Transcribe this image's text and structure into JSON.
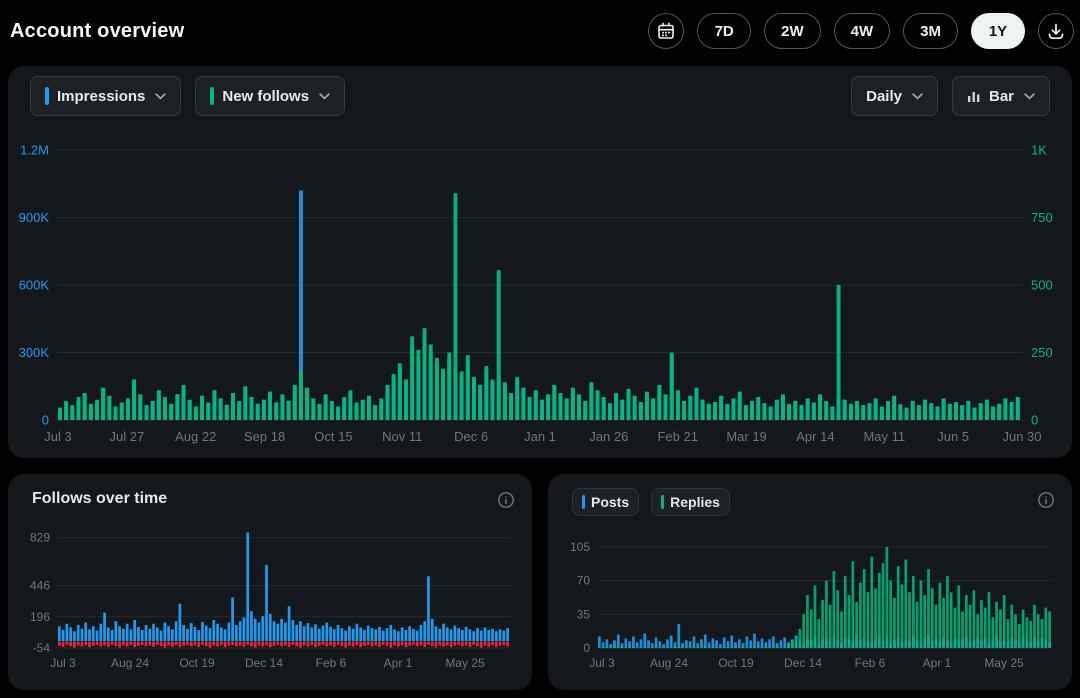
{
  "header": {
    "title": "Account overview",
    "calendar_button": "calendar",
    "download_button": "download",
    "time_ranges": [
      {
        "label": "7D",
        "selected": false
      },
      {
        "label": "2W",
        "selected": false
      },
      {
        "label": "4W",
        "selected": false
      },
      {
        "label": "3M",
        "selected": false
      },
      {
        "label": "1Y",
        "selected": true
      }
    ]
  },
  "main_panel": {
    "metrics": [
      {
        "label": "Impressions",
        "accent": "#1d9bf0"
      },
      {
        "label": "New follows",
        "accent": "#00ba7c"
      }
    ],
    "granularity_label": "Daily",
    "chart_type_label": "Bar"
  },
  "follows_panel": {
    "title": "Follows over time"
  },
  "engagement_panel": {
    "legend": [
      {
        "label": "Posts",
        "accent": "#1d9bf0"
      },
      {
        "label": "Replies",
        "accent": "#00ba7c"
      }
    ]
  },
  "colors": {
    "blue": "#1d9bf0",
    "green": "#00ba7c",
    "red": "#f4212e",
    "axis_text": "#71767b",
    "grid": "#23282c",
    "selected_pill_bg": "#eff3f4"
  },
  "chart_data": [
    {
      "id": "impressions-vs-new-follows",
      "type": "bar",
      "granularity": "Daily",
      "x_tick_labels": [
        "Jul 3",
        "Jul 27",
        "Aug 22",
        "Sep 18",
        "Oct 15",
        "Nov 11",
        "Dec 6",
        "Jan 1",
        "Jan 26",
        "Feb 21",
        "Mar 19",
        "Apr 14",
        "May 11",
        "Jun 5",
        "Jun 30"
      ],
      "left_axis": {
        "metric": "Impressions",
        "color": "#1d9bf0",
        "ticks": [
          "0",
          "300K",
          "600K",
          "900K",
          "1.2M"
        ],
        "range": [
          0,
          1200000
        ]
      },
      "right_axis": {
        "metric": "New follows",
        "color": "#00ba7c",
        "ticks": [
          "0",
          "250",
          "500",
          "750",
          "1K"
        ],
        "range": [
          0,
          1000
        ]
      },
      "series": [
        {
          "name": "Impressions",
          "axis": "left",
          "color": "#1d9bf0",
          "values_unit": "thousands",
          "values": [
            55,
            80,
            62,
            95,
            120,
            70,
            88,
            140,
            105,
            60,
            75,
            92,
            180,
            110,
            65,
            85,
            130,
            95,
            70,
            115,
            150,
            88,
            60,
            105,
            75,
            132,
            95,
            68,
            118,
            82,
            145,
            100,
            72,
            90,
            125,
            78,
            110,
            86,
            150,
            1020,
            140,
            95,
            70,
            110,
            82,
            60,
            96,
            128,
            75,
            88,
            104,
            66,
            92,
            150,
            190,
            230,
            170,
            330,
            280,
            360,
            300,
            250,
            210,
            270,
            240,
            200,
            260,
            180,
            150,
            220,
            170,
            200,
            160,
            120,
            180,
            140,
            100,
            130,
            90,
            110,
            150,
            120,
            95,
            140,
            110,
            85,
            160,
            130,
            100,
            75,
            115,
            90,
            135,
            105,
            80,
            120,
            95,
            150,
            110,
            290,
            130,
            85,
            105,
            140,
            90,
            70,
            80,
            105,
            70,
            95,
            120,
            65,
            85,
            100,
            75,
            60,
            90,
            110,
            70,
            85,
            65,
            95,
            75,
            110,
            80,
            60,
            100,
            90,
            70,
            85,
            65,
            75,
            95,
            60,
            80,
            105,
            70,
            55,
            85,
            65,
            90,
            75,
            60,
            95,
            70,
            80,
            65,
            85,
            55,
            75,
            90,
            60,
            70,
            95,
            80,
            100
          ]
        },
        {
          "name": "New follows",
          "axis": "right",
          "color": "#00ba7c",
          "values_unit": "units",
          "values": [
            45,
            70,
            55,
            85,
            100,
            60,
            75,
            120,
            90,
            50,
            65,
            80,
            150,
            95,
            55,
            70,
            110,
            85,
            60,
            95,
            130,
            75,
            50,
            90,
            65,
            110,
            80,
            55,
            100,
            70,
            125,
            85,
            60,
            75,
            105,
            65,
            95,
            70,
            130,
            180,
            120,
            80,
            60,
            95,
            70,
            50,
            85,
            110,
            65,
            75,
            90,
            55,
            80,
            130,
            170,
            210,
            150,
            310,
            260,
            340,
            280,
            230,
            190,
            250,
            840,
            180,
            240,
            160,
            130,
            200,
            150,
            555,
            140,
            100,
            160,
            120,
            85,
            110,
            75,
            95,
            130,
            100,
            80,
            120,
            95,
            70,
            140,
            110,
            85,
            60,
            100,
            75,
            115,
            90,
            65,
            105,
            80,
            130,
            95,
            250,
            110,
            70,
            90,
            120,
            75,
            60,
            65,
            90,
            60,
            80,
            105,
            55,
            70,
            85,
            60,
            50,
            75,
            95,
            60,
            70,
            55,
            80,
            65,
            95,
            70,
            50,
            500,
            75,
            60,
            70,
            55,
            60,
            80,
            50,
            70,
            90,
            55,
            45,
            70,
            55,
            75,
            60,
            50,
            80,
            60,
            65,
            55,
            70,
            45,
            60,
            75,
            50,
            60,
            80,
            65,
            85
          ]
        }
      ]
    },
    {
      "id": "follows-over-time",
      "type": "bar",
      "title": "Follows over time",
      "y_ticks": [
        "829",
        "446",
        "196",
        "-54"
      ],
      "y_tick_values": [
        829,
        446,
        196,
        -54
      ],
      "y_range": [
        -54,
        890
      ],
      "x_tick_labels": [
        "Jul 3",
        "Aug 24",
        "Oct 19",
        "Dec 14",
        "Feb 6",
        "Apr 1",
        "May 25"
      ],
      "series": [
        {
          "name": "Follows",
          "color": "#1d9bf0",
          "values": [
            120,
            90,
            140,
            110,
            80,
            130,
            100,
            150,
            95,
            120,
            85,
            140,
            230,
            110,
            90,
            160,
            120,
            100,
            140,
            95,
            170,
            115,
            90,
            130,
            100,
            140,
            110,
            85,
            150,
            120,
            95,
            160,
            300,
            130,
            100,
            145,
            115,
            90,
            155,
            125,
            105,
            170,
            140,
            110,
            95,
            150,
            350,
            130,
            160,
            190,
            870,
            240,
            180,
            150,
            200,
            610,
            220,
            160,
            140,
            180,
            150,
            280,
            170,
            130,
            160,
            120,
            145,
            110,
            135,
            100,
            125,
            150,
            115,
            95,
            130,
            105,
            85,
            120,
            100,
            140,
            110,
            90,
            125,
            105,
            95,
            115,
            85,
            105,
            130,
            95,
            80,
            110,
            90,
            120,
            100,
            85,
            130,
            160,
            520,
            180,
            120,
            100,
            140,
            110,
            95,
            125,
            105,
            90,
            115,
            95,
            80,
            105,
            85,
            110,
            90,
            100,
            80,
            95,
            85,
            105
          ]
        },
        {
          "name": "Unfollows",
          "color": "#f4212e",
          "values": [
            -30,
            -40,
            -25,
            -35,
            -45,
            -30,
            -38,
            -28,
            -42,
            -32,
            -26,
            -36,
            -30,
            -40,
            -25,
            -35,
            -45,
            -30,
            -38,
            -28,
            -42,
            -32,
            -26,
            -36,
            -30,
            -40,
            -25,
            -35,
            -45,
            -30,
            -38,
            -28,
            -42,
            -32,
            -26,
            -36,
            -30,
            -40,
            -25,
            -35,
            -45,
            -30,
            -38,
            -28,
            -42,
            -32,
            -26,
            -36,
            -30,
            -40,
            -25,
            -35,
            -45,
            -30,
            -38,
            -28,
            -42,
            -32,
            -26,
            -36,
            -30,
            -40,
            -25,
            -35,
            -45,
            -30,
            -38,
            -28,
            -42,
            -32,
            -26,
            -36,
            -30,
            -40,
            -25,
            -35,
            -45,
            -30,
            -38,
            -28,
            -42,
            -32,
            -26,
            -36,
            -30,
            -40,
            -25,
            -35,
            -45,
            -30,
            -38,
            -28,
            -42,
            -32,
            -26,
            -36,
            -30,
            -40,
            -25,
            -35,
            -45,
            -30,
            -38,
            -28,
            -42,
            -32,
            -26,
            -36,
            -30,
            -40,
            -25,
            -35,
            -45,
            -30,
            -38,
            -28,
            -42,
            -32,
            -26,
            -36
          ]
        }
      ]
    },
    {
      "id": "posts-vs-replies",
      "type": "bar",
      "legend": [
        "Posts",
        "Replies"
      ],
      "y_ticks": [
        "105",
        "70",
        "35",
        "0"
      ],
      "y_tick_values": [
        105,
        70,
        35,
        0
      ],
      "y_range": [
        0,
        105
      ],
      "x_tick_labels": [
        "Jul 3",
        "Aug 24",
        "Oct 19",
        "Dec 14",
        "Feb 6",
        "Apr 1",
        "May 25"
      ],
      "series": [
        {
          "name": "Posts",
          "color": "#1d9bf0",
          "values": [
            12,
            6,
            9,
            4,
            8,
            14,
            5,
            10,
            7,
            12,
            6,
            9,
            15,
            8,
            5,
            11,
            7,
            4,
            9,
            13,
            6,
            25,
            5,
            8,
            7,
            12,
            5,
            9,
            14,
            6,
            10,
            8,
            4,
            11,
            7,
            13,
            6,
            9,
            5,
            12,
            8,
            15,
            7,
            10,
            6,
            9,
            12,
            5,
            8,
            11,
            6,
            9,
            13,
            7,
            5,
            10,
            8,
            12,
            6,
            9,
            10,
            7,
            12,
            8,
            5,
            11,
            9,
            6,
            13,
            8,
            10,
            7,
            6,
            9,
            12,
            7,
            10,
            5,
            8,
            11,
            6,
            9,
            7,
            12,
            8,
            5,
            10,
            13,
            7,
            9,
            6,
            11,
            8,
            5,
            10,
            7,
            9,
            12,
            6,
            8,
            11,
            7,
            10,
            5,
            9,
            13,
            6,
            8,
            7,
            10,
            8,
            5,
            12,
            9,
            6,
            11,
            7,
            10,
            8,
            6
          ]
        },
        {
          "name": "Replies",
          "color": "#00ba7c",
          "values": [
            0,
            2,
            1,
            0,
            3,
            1,
            2,
            0,
            1,
            2,
            0,
            1,
            2,
            0,
            1,
            3,
            0,
            2,
            1,
            0,
            2,
            1,
            3,
            0,
            1,
            2,
            0,
            1,
            2,
            0,
            3,
            1,
            0,
            2,
            1,
            0,
            2,
            1,
            3,
            0,
            1,
            2,
            0,
            1,
            2,
            0,
            1,
            3,
            0,
            2,
            5,
            8,
            12,
            20,
            35,
            55,
            40,
            65,
            30,
            50,
            70,
            45,
            80,
            60,
            38,
            75,
            55,
            90,
            48,
            68,
            82,
            58,
            95,
            62,
            78,
            88,
            105,
            70,
            52,
            85,
            66,
            92,
            58,
            75,
            48,
            70,
            55,
            82,
            62,
            45,
            68,
            52,
            75,
            58,
            42,
            65,
            38,
            55,
            45,
            60,
            35,
            50,
            42,
            58,
            32,
            48,
            40,
            55,
            30,
            45,
            35,
            25,
            40,
            32,
            28,
            45,
            35,
            30,
            42,
            38
          ]
        }
      ]
    }
  ]
}
